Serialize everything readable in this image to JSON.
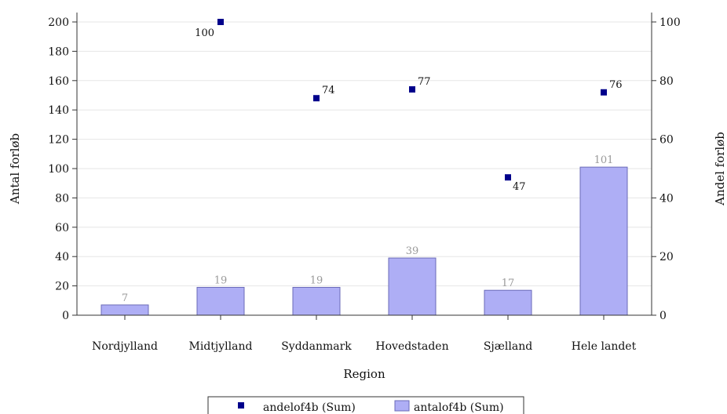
{
  "chart_data": {
    "type": "bar",
    "xlabel": "Region",
    "ylabel_left": "Antal forløb",
    "ylabel_right": "Andel forløb",
    "categories": [
      "Nordjylland",
      "Midtjylland",
      "Syddanmark",
      "Hovedstaden",
      "Sjælland",
      "Hele landet"
    ],
    "ylim_left": [
      0,
      200
    ],
    "yticks_left": [
      0,
      20,
      40,
      60,
      80,
      100,
      120,
      140,
      160,
      180,
      200
    ],
    "ylim_right": [
      0,
      100
    ],
    "yticks_right": [
      0,
      20,
      40,
      60,
      80,
      100
    ],
    "grid": true,
    "legend_position": "bottom",
    "series": [
      {
        "name": "andelof4b (Sum)",
        "kind": "scatter",
        "axis": "right",
        "color": "#00008b",
        "values": [
          null,
          100,
          74,
          77,
          47,
          76
        ],
        "labels": [
          "",
          "100",
          "74",
          "77",
          "47",
          "76"
        ]
      },
      {
        "name": "antalof4b (Sum)",
        "kind": "bar",
        "axis": "left",
        "color": "#aeaef5",
        "stroke": "#6b6bb8",
        "values": [
          7,
          19,
          19,
          39,
          17,
          101
        ],
        "labels": [
          "7",
          "19",
          "19",
          "39",
          "17",
          "101"
        ]
      }
    ]
  }
}
